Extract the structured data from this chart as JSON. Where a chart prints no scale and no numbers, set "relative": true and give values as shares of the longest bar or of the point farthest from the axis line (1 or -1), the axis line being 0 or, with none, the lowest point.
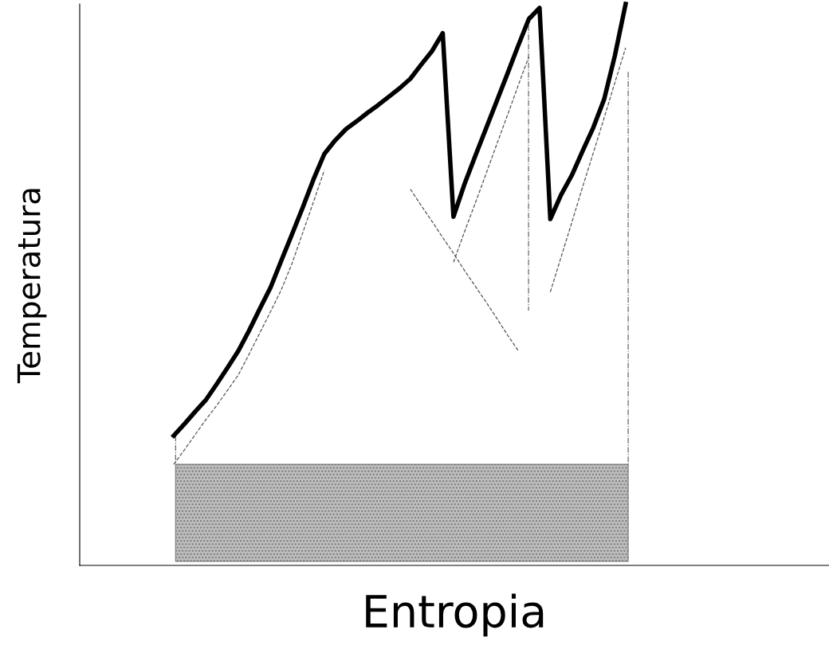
{
  "chart_data": {
    "type": "line",
    "relative": true,
    "xlabel": "Entropia",
    "ylabel": "Temperatura",
    "legend": false,
    "marker": "none",
    "categories": [
      null,
      null,
      null,
      null,
      null,
      null,
      null,
      null,
      null,
      null,
      null,
      null,
      null,
      null,
      null,
      null,
      null,
      null,
      null,
      null,
      null,
      null,
      null,
      null,
      null,
      null,
      null,
      null,
      null,
      null,
      null,
      null,
      null,
      null,
      null,
      null,
      null,
      null,
      null,
      null,
      null,
      null,
      null
    ],
    "series": [
      {
        "color": "#000000",
        "line_style": "solid",
        "values": [
          0.231,
          0.252,
          0.274,
          0.295,
          0.323,
          0.352,
          0.382,
          0.418,
          0.457,
          0.495,
          0.543,
          0.59,
          0.638,
          0.688,
          0.733,
          0.757,
          0.777,
          0.791,
          0.806,
          0.82,
          0.835,
          0.85,
          0.867,
          0.892,
          0.916,
          0.948,
          0.621,
          0.678,
          0.728,
          0.777,
          0.826,
          0.875,
          0.925,
          0.973,
          0.993,
          0.617,
          0.66,
          0.695,
          0.738,
          0.78,
          0.83,
          0.908,
          1.0
        ]
      },
      {
        "color": "#555555",
        "line_style": "dashed",
        "values": [
          0.18,
          0.206,
          0.233,
          0.26,
          0.285,
          0.312,
          0.339,
          0.376,
          0.414,
          0.452,
          0.491,
          0.538,
          0.593,
          0.648,
          0.704,
          null,
          null,
          null,
          null,
          null,
          null,
          null,
          null,
          null,
          null,
          null,
          null,
          null,
          null,
          null,
          null,
          null,
          null,
          null,
          null,
          null,
          null,
          null,
          null,
          null,
          null,
          null,
          null
        ]
      },
      {
        "color": "#555555",
        "line_style": "dashed",
        "values": [
          null,
          null,
          null,
          null,
          null,
          null,
          null,
          null,
          null,
          null,
          null,
          null,
          null,
          null,
          null,
          null,
          null,
          null,
          null,
          null,
          null,
          null,
          0.67,
          0.641,
          0.613,
          0.584,
          0.556,
          0.526,
          0.498,
          0.47,
          0.441,
          0.411,
          0.383,
          null,
          null,
          null,
          null,
          null,
          null,
          null,
          null,
          null,
          null
        ]
      },
      {
        "color": "#555555",
        "line_style": "dashed",
        "values": [
          null,
          null,
          null,
          null,
          null,
          null,
          null,
          null,
          null,
          null,
          null,
          null,
          null,
          null,
          null,
          null,
          null,
          null,
          null,
          null,
          null,
          null,
          null,
          null,
          null,
          null,
          0.54,
          0.593,
          0.644,
          0.696,
          0.749,
          0.801,
          0.854,
          0.906,
          null,
          null,
          null,
          null,
          null,
          null,
          null,
          null,
          null
        ]
      },
      {
        "color": "#555555",
        "line_style": "dashed",
        "values": [
          null,
          null,
          null,
          null,
          null,
          null,
          null,
          null,
          null,
          null,
          null,
          null,
          null,
          null,
          null,
          null,
          null,
          null,
          null,
          null,
          null,
          null,
          null,
          null,
          null,
          null,
          null,
          null,
          null,
          null,
          null,
          null,
          null,
          null,
          null,
          0.487,
          0.549,
          0.611,
          0.674,
          0.735,
          0.797,
          0.86,
          0.922
        ]
      }
    ]
  }
}
